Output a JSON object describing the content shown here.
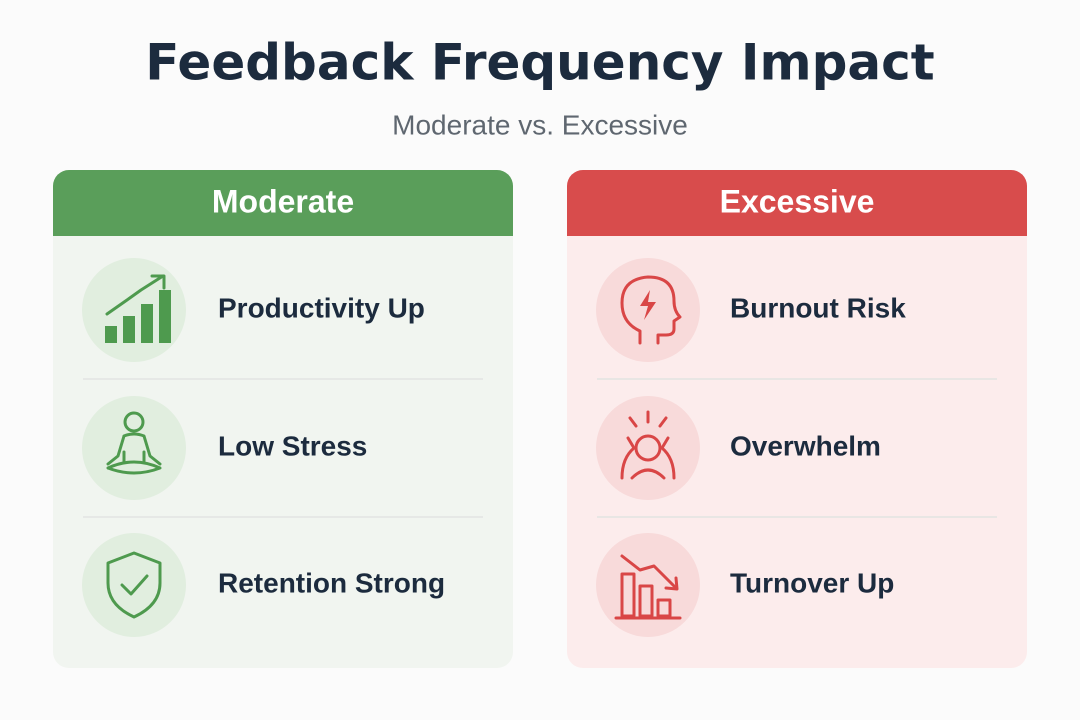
{
  "header": {
    "title": "Feedback Frequency Impact",
    "subtitle": "Moderate vs. Excessive"
  },
  "panels": [
    {
      "title": "Moderate",
      "items": [
        {
          "label": "Productivity Up"
        },
        {
          "label": "Low Stress"
        },
        {
          "label": "Retention Strong"
        }
      ]
    },
    {
      "title": "Excessive",
      "items": [
        {
          "label": "Burnout Risk"
        },
        {
          "label": "Overwhelm"
        },
        {
          "label": "Turnover Up"
        }
      ]
    }
  ]
}
